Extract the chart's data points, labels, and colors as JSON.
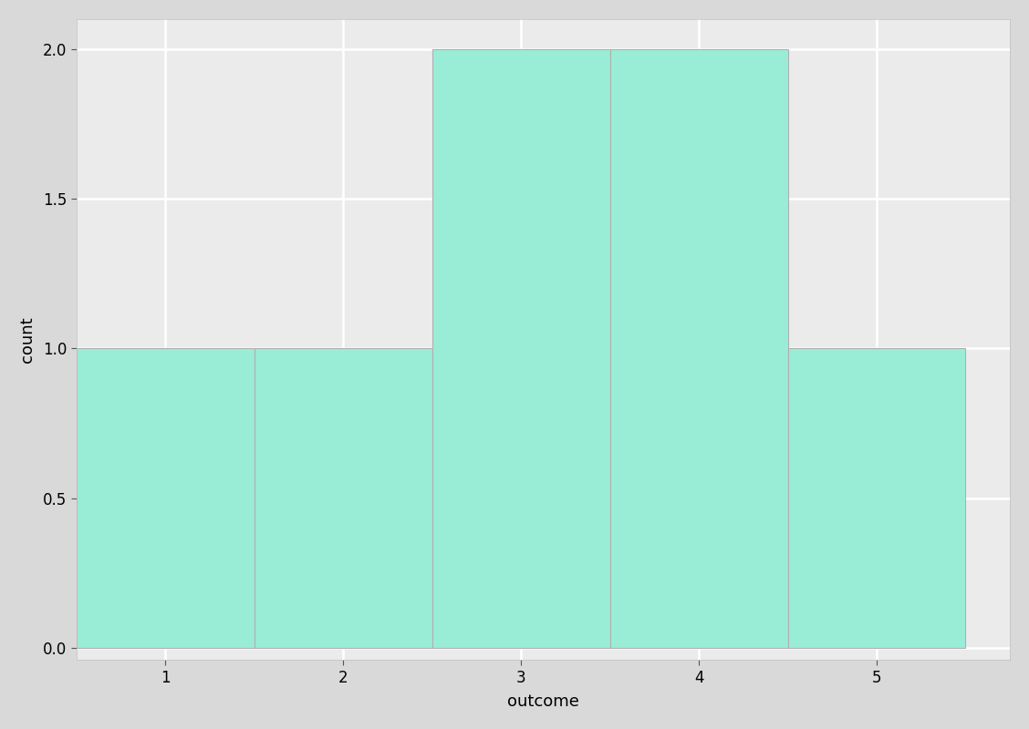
{
  "bin_edges": [
    0.5,
    1.5,
    2.5,
    3.5,
    4.5,
    5.5
  ],
  "counts": [
    1,
    1,
    2,
    2,
    1
  ],
  "bar_color": "#99EDD6",
  "bar_edge_color": "#b0b0b0",
  "bar_edge_width": 0.8,
  "title": "",
  "xlabel": "outcome",
  "ylabel": "count",
  "xlim": [
    0.5,
    5.75
  ],
  "ylim": [
    -0.04,
    2.1
  ],
  "xticks": [
    1,
    2,
    3,
    4,
    5
  ],
  "yticks": [
    0.0,
    0.5,
    1.0,
    1.5,
    2.0
  ],
  "panel_background_color": "#EBEBEB",
  "figure_background_color": "#D9D9D9",
  "grid_color": "#FFFFFF",
  "grid_linewidth": 1.8,
  "xlabel_fontsize": 13,
  "ylabel_fontsize": 13,
  "tick_fontsize": 12
}
